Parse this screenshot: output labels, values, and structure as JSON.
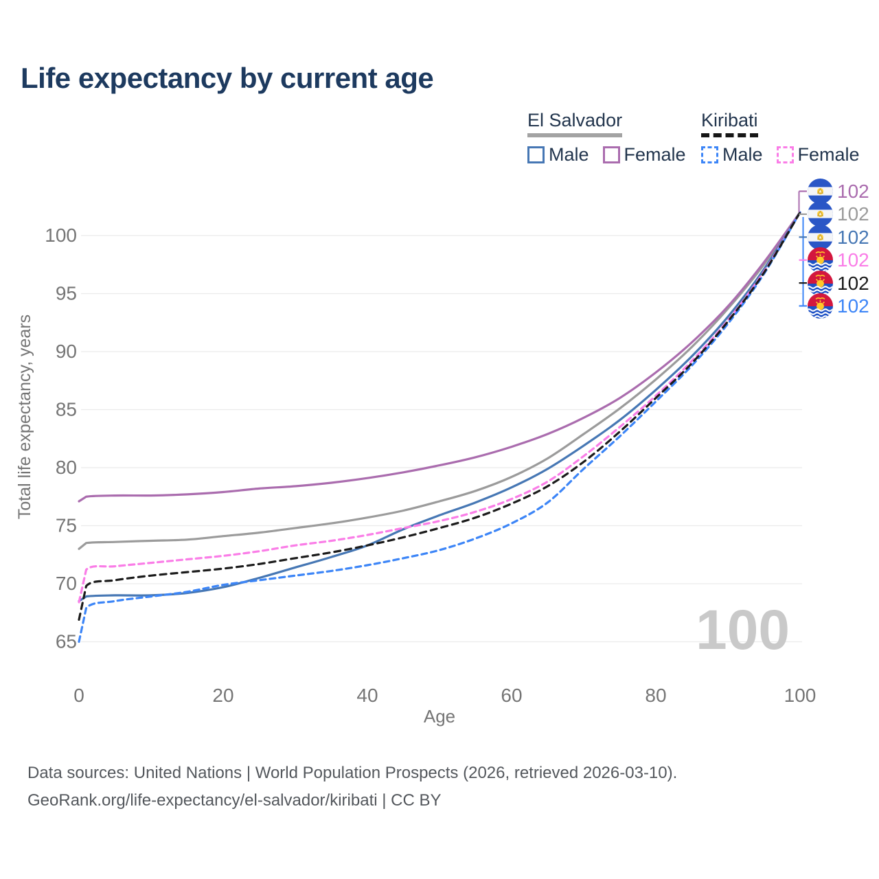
{
  "title": "Life expectancy by current age",
  "legend": {
    "groups": [
      {
        "country": "El Salvador",
        "underline": "solid",
        "underline_color": "#a3a3a3",
        "items": [
          {
            "label": "Male",
            "color": "#4677b4",
            "dashed": false
          },
          {
            "label": "Female",
            "color": "#aa6cae",
            "dashed": false
          }
        ]
      },
      {
        "country": "Kiribati",
        "underline": "dashed",
        "underline_color": "#161616",
        "items": [
          {
            "label": "Male",
            "color": "#3c85f7",
            "dashed": true
          },
          {
            "label": "Female",
            "color": "#fa7de7",
            "dashed": true
          }
        ]
      }
    ]
  },
  "watermark": "100",
  "end_labels": [
    {
      "icon": "el-salvador-flag-icon",
      "country": "El Salvador",
      "series": "Female",
      "value": "102",
      "color": "#aa6cae"
    },
    {
      "icon": "el-salvador-flag-icon",
      "country": "El Salvador",
      "series": "Both sexes",
      "value": "102",
      "color": "#9b9b9b"
    },
    {
      "icon": "el-salvador-flag-icon",
      "country": "El Salvador",
      "series": "Male",
      "value": "102",
      "color": "#4677b4"
    },
    {
      "icon": "kiribati-flag-icon",
      "country": "Kiribati",
      "series": "Female",
      "value": "102",
      "color": "#fa7de7"
    },
    {
      "icon": "kiribati-flag-icon",
      "country": "Kiribati",
      "series": "Both sexes",
      "value": "102",
      "color": "#1b1b1b"
    },
    {
      "icon": "kiribati-flag-icon",
      "country": "Kiribati",
      "series": "Male",
      "value": "102",
      "color": "#3c85f7"
    }
  ],
  "footer": {
    "line1": "Data sources: United Nations | World Population Prospects (2026, retrieved 2026-03-10).",
    "line2": "GeoRank.org/life-expectancy/el-salvador/kiribati | CC BY"
  },
  "chart_data": {
    "type": "line",
    "title": "Life expectancy by current age",
    "xlabel": "Age",
    "ylabel": "Total life expectancy, years",
    "x_ticks": [
      0,
      20,
      40,
      60,
      80,
      100
    ],
    "y_ticks": [
      65,
      70,
      75,
      80,
      85,
      90,
      95,
      100
    ],
    "xlim": [
      0,
      100
    ],
    "ylim": [
      64,
      103
    ],
    "grid": true,
    "legend_position": "top-right",
    "x": [
      0,
      1,
      5,
      10,
      15,
      20,
      25,
      30,
      35,
      40,
      45,
      50,
      55,
      60,
      65,
      70,
      75,
      80,
      85,
      90,
      95,
      100
    ],
    "series": [
      {
        "name": "El Salvador Both sexes",
        "color": "#9b9b9b",
        "dash": null,
        "values": [
          73.0,
          73.5,
          73.6,
          73.7,
          73.8,
          74.1,
          74.4,
          74.8,
          75.2,
          75.7,
          76.3,
          77.1,
          78.0,
          79.2,
          80.8,
          82.9,
          85.1,
          87.6,
          90.4,
          93.7,
          97.5,
          102
        ]
      },
      {
        "name": "El Salvador Female",
        "color": "#aa6cae",
        "dash": null,
        "values": [
          77.1,
          77.5,
          77.6,
          77.6,
          77.7,
          77.9,
          78.2,
          78.4,
          78.7,
          79.1,
          79.6,
          80.2,
          80.9,
          81.8,
          82.9,
          84.3,
          86.0,
          88.2,
          90.8,
          93.9,
          97.7,
          102
        ]
      },
      {
        "name": "El Salvador Male",
        "color": "#4677b4",
        "dash": null,
        "values": [
          68.5,
          68.9,
          69.0,
          69.0,
          69.2,
          69.7,
          70.5,
          71.4,
          72.3,
          73.3,
          74.7,
          75.9,
          77.0,
          78.3,
          79.9,
          81.9,
          84.1,
          86.7,
          89.6,
          93.0,
          97.1,
          102
        ]
      },
      {
        "name": "Kiribati Female",
        "color": "#fa7de7",
        "dash": [
          8,
          6
        ],
        "values": [
          68.4,
          71.2,
          71.5,
          71.8,
          72.1,
          72.4,
          72.8,
          73.3,
          73.7,
          74.2,
          74.8,
          75.4,
          76.2,
          77.3,
          78.8,
          81.0,
          83.5,
          86.2,
          89.2,
          92.7,
          96.9,
          102
        ]
      },
      {
        "name": "Kiribati Male",
        "color": "#3c85f7",
        "dash": [
          8,
          6
        ],
        "values": [
          65.0,
          67.9,
          68.5,
          68.9,
          69.3,
          69.9,
          70.3,
          70.7,
          71.1,
          71.6,
          72.2,
          72.9,
          73.9,
          75.2,
          77.0,
          79.9,
          82.7,
          85.7,
          88.8,
          92.4,
          96.7,
          102
        ]
      },
      {
        "name": "Kiribati Both sexes",
        "color": "#1b1b1b",
        "dash": [
          9,
          7
        ],
        "values": [
          66.9,
          69.8,
          70.3,
          70.7,
          71.0,
          71.3,
          71.7,
          72.2,
          72.7,
          73.3,
          74.0,
          74.8,
          75.7,
          76.9,
          78.4,
          80.5,
          83.1,
          86.0,
          89.0,
          92.6,
          96.8,
          102
        ]
      }
    ]
  }
}
